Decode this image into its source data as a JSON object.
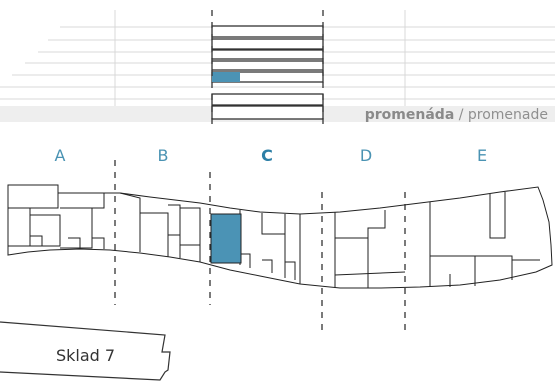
{
  "sections": [
    "A",
    "B",
    "C",
    "D",
    "E"
  ],
  "active_section": "C",
  "promenade": {
    "bold": "promenáda",
    "rest": " / promenade"
  },
  "storage_label": "Sklad 7",
  "floors_selected_index": 5,
  "colors": {
    "accent": "#4a93b3",
    "accent_fill": "#4b93b5",
    "line": "#222222",
    "band": "#eeeeee"
  }
}
